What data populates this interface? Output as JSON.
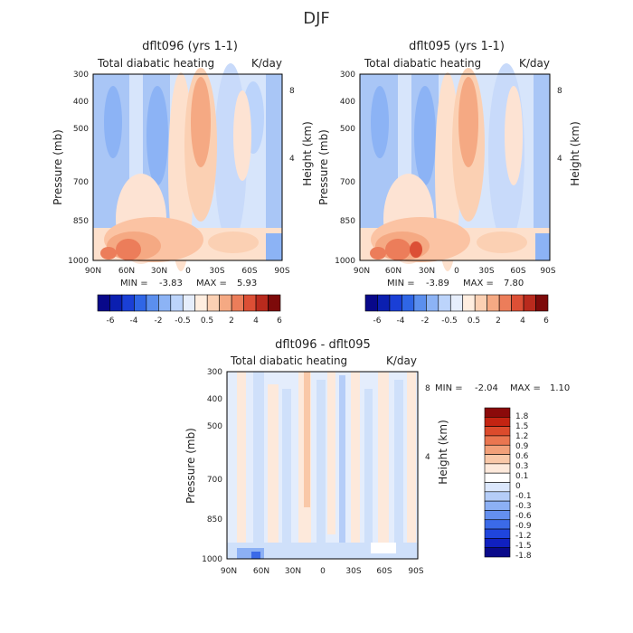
{
  "figure": {
    "title": "DJF"
  },
  "colors": {
    "main_scale": [
      "#08088a",
      "#0b1fb0",
      "#1a3fd6",
      "#2f66e6",
      "#5b8fee",
      "#8cb3f5",
      "#bcd4fb",
      "#e6eefc",
      "#ffeee0",
      "#fbd0b3",
      "#f5a983",
      "#ec7d5a",
      "#dc4f35",
      "#b92a1d",
      "#7d0a0a"
    ],
    "diff_scale": [
      "#0a0a8a",
      "#1020c0",
      "#1f45dd",
      "#3b6ae8",
      "#648fef",
      "#8cb0f4",
      "#b5cdf8",
      "#dbe7fc",
      "#ffffff",
      "#fde9db",
      "#f9c8a8",
      "#f2a079",
      "#ea7650",
      "#dc4b2c",
      "#c42412",
      "#8b0a0a"
    ]
  },
  "chart_data": [
    {
      "type": "heatmap",
      "title": "dflt096 (yrs 1-1)",
      "subtitle_left": "Total diabatic heating",
      "subtitle_right": "K/day",
      "xlabel": "",
      "ylabel": "Pressure (mb)",
      "ylabel_right": "Height (km)",
      "x_ticks": [
        "90N",
        "60N",
        "30N",
        "0",
        "30S",
        "60S",
        "90S"
      ],
      "y_ticks": [
        "300",
        "400",
        "500",
        "700",
        "850",
        "1000"
      ],
      "y_right_ticks": [
        "8",
        "4"
      ],
      "stats": {
        "min_label": "MIN =",
        "min": "-3.83",
        "max_label": "MAX =",
        "max": "5.93"
      },
      "colorbar_labels": [
        "-6",
        "-4",
        "-2",
        "-0.5",
        "0.5",
        "2",
        "4",
        "6"
      ],
      "colorbar_levels": [
        -6,
        -5,
        -4,
        -3,
        -2,
        -1,
        -0.5,
        0,
        0.5,
        1,
        2,
        3,
        4,
        5,
        6
      ]
    },
    {
      "type": "heatmap",
      "title": "dflt095 (yrs 1-1)",
      "subtitle_left": "Total diabatic heating",
      "subtitle_right": "K/day",
      "xlabel": "",
      "ylabel": "Pressure (mb)",
      "ylabel_right": "Height (km)",
      "x_ticks": [
        "90N",
        "60N",
        "30N",
        "0",
        "30S",
        "60S",
        "90S"
      ],
      "y_ticks": [
        "300",
        "400",
        "500",
        "700",
        "850",
        "1000"
      ],
      "y_right_ticks": [
        "8",
        "4"
      ],
      "stats": {
        "min_label": "MIN =",
        "min": "-3.89",
        "max_label": "MAX =",
        "max": "7.80"
      },
      "colorbar_labels": [
        "-6",
        "-4",
        "-2",
        "-0.5",
        "0.5",
        "2",
        "4",
        "6"
      ],
      "colorbar_levels": [
        -6,
        -5,
        -4,
        -3,
        -2,
        -1,
        -0.5,
        0,
        0.5,
        1,
        2,
        3,
        4,
        5,
        6
      ]
    },
    {
      "type": "heatmap",
      "title": "dflt096 - dflt095",
      "subtitle_left": "Total diabatic heating",
      "subtitle_right": "K/day",
      "xlabel": "",
      "ylabel": "Pressure (mb)",
      "ylabel_right": "Height (km)",
      "x_ticks": [
        "90N",
        "60N",
        "30N",
        "0",
        "30S",
        "60S",
        "90S"
      ],
      "y_ticks": [
        "300",
        "400",
        "500",
        "700",
        "850",
        "1000"
      ],
      "y_right_ticks": [
        "8",
        "4"
      ],
      "stats": {
        "min_label": "MIN =",
        "min": "-2.04",
        "max_label": "MAX =",
        "max": "1.10"
      },
      "colorbar_labels": [
        "1.8",
        "1.5",
        "1.2",
        "0.9",
        "0.6",
        "0.3",
        "0.1",
        "0",
        "-0.1",
        "-0.3",
        "-0.6",
        "-0.9",
        "-1.2",
        "-1.5",
        "-1.8"
      ]
    }
  ]
}
